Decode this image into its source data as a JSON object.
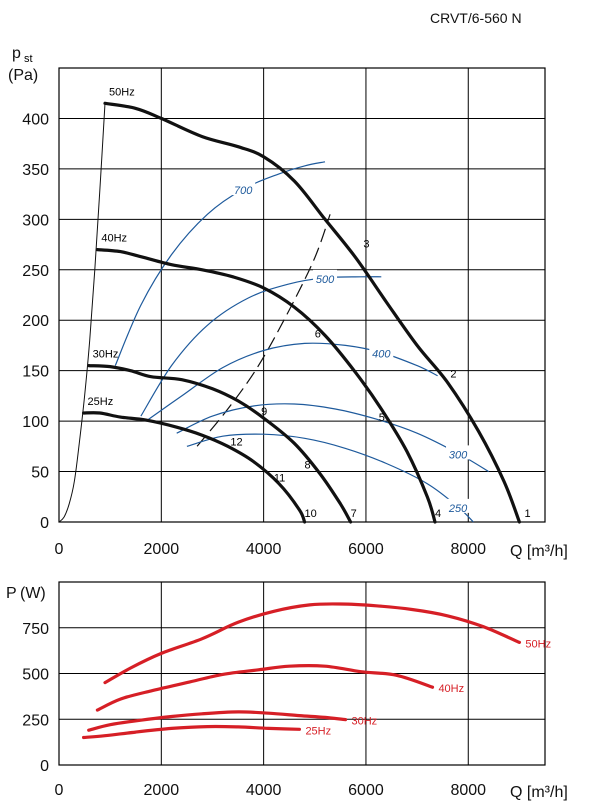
{
  "chart_data": [
    {
      "type": "line",
      "title": "CRVT/6-560 N",
      "xlabel": "Q [m³/h]",
      "ylabel_main": "p",
      "ylabel_sub": "st",
      "ylabel_unit": "(Pa)",
      "xlim": [
        0,
        9500
      ],
      "ylim": [
        0,
        450
      ],
      "x_ticks": [
        0,
        2000,
        4000,
        6000,
        8000
      ],
      "y_ticks": [
        0,
        50,
        100,
        150,
        200,
        250,
        300,
        350,
        400
      ],
      "grid": true,
      "series": [
        {
          "name": "50Hz",
          "x": [
            900,
            1500,
            2000,
            2800,
            3500,
            4000,
            4600,
            5200,
            5800,
            6400,
            7000,
            7600,
            8200,
            8700,
            9000
          ],
          "y": [
            415,
            410,
            400,
            382,
            372,
            362,
            338,
            300,
            262,
            218,
            175,
            138,
            90,
            40,
            0
          ]
        },
        {
          "name": "40Hz",
          "x": [
            750,
            1200,
            1600,
            2200,
            2800,
            3400,
            4000,
            4600,
            5200,
            5800,
            6300,
            6800,
            7200,
            7350
          ],
          "y": [
            270,
            268,
            263,
            255,
            250,
            243,
            232,
            213,
            185,
            148,
            112,
            70,
            25,
            0
          ]
        },
        {
          "name": "30Hz",
          "x": [
            580,
            1000,
            1400,
            1800,
            2400,
            3000,
            3500,
            4000,
            4600,
            5100,
            5500,
            5700
          ],
          "y": [
            155,
            154,
            150,
            144,
            141,
            132,
            120,
            103,
            78,
            48,
            18,
            0
          ]
        },
        {
          "name": "25Hz",
          "x": [
            480,
            800,
            1200,
            1700,
            2300,
            2800,
            3300,
            3800,
            4300,
            4700,
            4800
          ],
          "y": [
            108,
            108,
            104,
            101,
            94,
            86,
            75,
            60,
            38,
            12,
            0
          ]
        }
      ],
      "efficiency_curves": [
        {
          "label": "700",
          "x": [
            1100,
            1600,
            2200,
            2900,
            3600,
            4300,
            4800,
            5200
          ],
          "y": [
            155,
            215,
            265,
            305,
            330,
            345,
            353,
            357
          ]
        },
        {
          "label": "500",
          "x": [
            1600,
            2200,
            2900,
            3700,
            4500,
            5200,
            5900,
            6300
          ],
          "y": [
            105,
            155,
            195,
            222,
            236,
            242,
            243,
            243
          ]
        },
        {
          "label": "400",
          "x": [
            1700,
            2400,
            3200,
            4000,
            4800,
            5600,
            6300,
            7000,
            7400
          ],
          "y": [
            100,
            125,
            153,
            170,
            177,
            175,
            168,
            155,
            145
          ]
        },
        {
          "label": "300",
          "x": [
            2300,
            3000,
            3800,
            4600,
            5400,
            6200,
            7000,
            7800,
            8400
          ],
          "y": [
            88,
            105,
            115,
            117,
            112,
            102,
            88,
            68,
            50
          ]
        },
        {
          "label": "250",
          "x": [
            2500,
            3200,
            4000,
            4800,
            5600,
            6400,
            7200,
            7800,
            8100
          ],
          "y": [
            75,
            85,
            87,
            83,
            73,
            58,
            38,
            15,
            0
          ]
        }
      ],
      "system_curve": {
        "x": [
          0,
          100,
          200,
          300,
          400,
          500,
          600,
          700,
          800,
          900
        ],
        "y": [
          0,
          5,
          18,
          40,
          80,
          125,
          180,
          250,
          330,
          415
        ]
      },
      "dashed_line": {
        "x": [
          2700,
          3300,
          3900,
          4500,
          5000,
          5300
        ],
        "y": [
          75,
          112,
          155,
          210,
          262,
          305
        ]
      },
      "line_markers": [
        {
          "label": "1",
          "x": 9100,
          "y": 5
        },
        {
          "label": "2",
          "x": 7650,
          "y": 143
        },
        {
          "label": "3",
          "x": 5950,
          "y": 272
        },
        {
          "label": "4",
          "x": 7350,
          "y": 5
        },
        {
          "label": "5",
          "x": 6250,
          "y": 100
        },
        {
          "label": "6",
          "x": 5000,
          "y": 183
        },
        {
          "label": "7",
          "x": 5700,
          "y": 5
        },
        {
          "label": "8",
          "x": 4800,
          "y": 53
        },
        {
          "label": "9",
          "x": 3950,
          "y": 106
        },
        {
          "label": "10",
          "x": 4800,
          "y": 5
        },
        {
          "label": "11",
          "x": 4200,
          "y": 40
        },
        {
          "label": "12",
          "x": 3350,
          "y": 76
        }
      ]
    },
    {
      "type": "line",
      "xlabel": "Q [m³/h]",
      "ylabel_main": "P",
      "ylabel_unit": "(W)",
      "xlim": [
        0,
        9500
      ],
      "ylim": [
        0,
        1000
      ],
      "x_ticks": [
        0,
        2000,
        4000,
        6000,
        8000
      ],
      "y_ticks": [
        0,
        250,
        500,
        750
      ],
      "grid": true,
      "colors": {
        "power": "#d61f26",
        "efficiency": "#1e5a9c"
      },
      "series": [
        {
          "name": "50Hz",
          "x": [
            900,
            1400,
            2000,
            2800,
            3500,
            4200,
            4900,
            5500,
            6200,
            6900,
            7600,
            8300,
            9000
          ],
          "y": [
            450,
            530,
            610,
            690,
            780,
            840,
            875,
            880,
            870,
            850,
            815,
            755,
            670
          ]
        },
        {
          "name": "40Hz",
          "x": [
            750,
            1200,
            1800,
            2500,
            3200,
            3900,
            4500,
            5200,
            5900,
            6600,
            7300
          ],
          "y": [
            300,
            360,
            405,
            450,
            495,
            520,
            540,
            540,
            510,
            490,
            425
          ]
        },
        {
          "name": "30Hz",
          "x": [
            580,
            1000,
            1600,
            2200,
            2800,
            3500,
            4100,
            4700,
            5200,
            5600
          ],
          "y": [
            190,
            220,
            245,
            265,
            280,
            290,
            283,
            270,
            260,
            248
          ]
        },
        {
          "name": "25Hz",
          "x": [
            480,
            900,
            1500,
            2200,
            2900,
            3500,
            4100,
            4700
          ],
          "y": [
            150,
            160,
            180,
            200,
            210,
            208,
            200,
            195
          ]
        }
      ]
    }
  ]
}
